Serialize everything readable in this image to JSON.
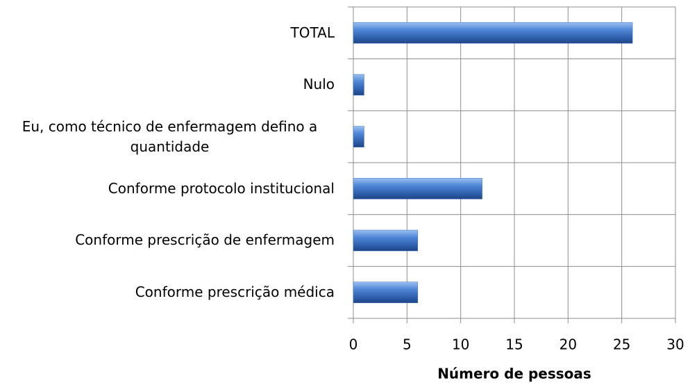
{
  "chart_data": {
    "type": "bar",
    "orientation": "horizontal",
    "categories": [
      "TOTAL",
      "Nulo",
      "Eu, como técnico de enfermagem defino a quantidade",
      "Conforme protocolo institucional",
      "Conforme prescrição de enfermagem",
      "Conforme prescrição médica"
    ],
    "values": [
      26,
      1,
      1,
      12,
      6,
      6
    ],
    "color": "#3a6fc0",
    "xlabel": "Número de pessoas",
    "xlim": [
      0,
      30
    ],
    "xticks": [
      0,
      5,
      10,
      15,
      20,
      25,
      30
    ],
    "grid": true
  }
}
